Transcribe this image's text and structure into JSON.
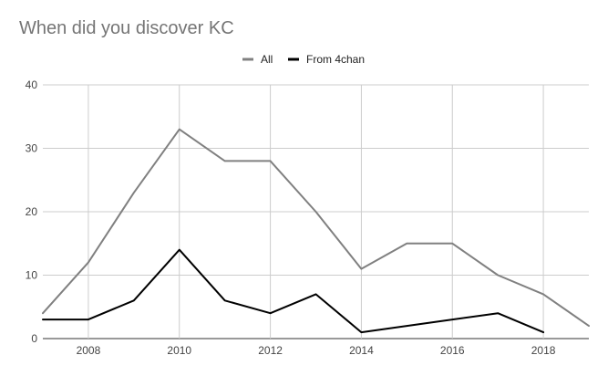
{
  "chart_data": {
    "type": "line",
    "title": "When did you discover KC",
    "xlabel": "",
    "ylabel": "",
    "x": [
      2007,
      2008,
      2009,
      2010,
      2011,
      2012,
      2013,
      2014,
      2015,
      2016,
      2017,
      2018,
      2019
    ],
    "xlim": [
      2007,
      2019
    ],
    "ylim": [
      0,
      40
    ],
    "x_ticks": [
      "2008",
      "2010",
      "2012",
      "2014",
      "2016",
      "2018"
    ],
    "y_ticks": [
      "0",
      "10",
      "20",
      "30",
      "40"
    ],
    "grid": true,
    "legend_position": "top",
    "series": [
      {
        "name": "All",
        "color": "#808080",
        "values": [
          4,
          12,
          23,
          33,
          28,
          28,
          20,
          11,
          15,
          15,
          10,
          7,
          2
        ]
      },
      {
        "name": "From 4chan",
        "color": "#000000",
        "values": [
          3,
          3,
          6,
          14,
          6,
          4,
          7,
          1,
          2,
          3,
          4,
          1,
          null
        ]
      }
    ]
  }
}
